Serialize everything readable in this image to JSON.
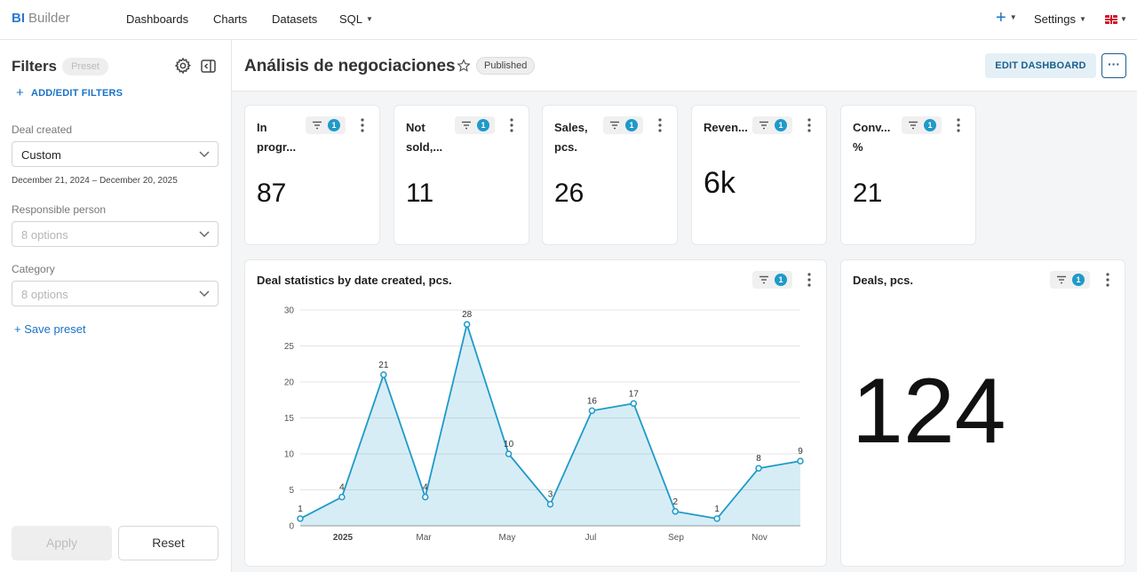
{
  "app": {
    "logo_bold": "BI",
    "logo_rest": "Builder"
  },
  "nav": {
    "items": [
      "Dashboards",
      "Charts",
      "Datasets",
      "SQL"
    ],
    "plus_label": "+",
    "settings_label": "Settings"
  },
  "sidebar": {
    "title": "Filters",
    "preset_badge": "Preset",
    "add_filters": "ADD/EDIT FILTERS",
    "deal_created": {
      "label": "Deal created",
      "value": "Custom",
      "range": "December 21, 2024 – December 20, 2025"
    },
    "responsible": {
      "label": "Responsible person",
      "placeholder": "8 options"
    },
    "category": {
      "label": "Category",
      "placeholder": "8 options"
    },
    "save_preset": "+ Save preset",
    "apply": "Apply",
    "reset": "Reset"
  },
  "dashboard": {
    "title": "Análisis de negociaciones",
    "status": "Published",
    "edit_label": "EDIT DASHBOARD",
    "more_label": "···",
    "filter_count": "1",
    "kpis": [
      {
        "line1": "In",
        "line2": "progr...",
        "value": "87"
      },
      {
        "line1": "Not",
        "line2": "sold,...",
        "value": "11"
      },
      {
        "line1": "Sales,",
        "line2": "pcs.",
        "value": "26"
      },
      {
        "line1": "Reven...",
        "line2": "",
        "value": "6k"
      },
      {
        "line1": "Conv...",
        "line2": "%",
        "value": "21"
      }
    ],
    "deals_card": {
      "title": "Deals, pcs.",
      "value": "124"
    }
  },
  "chart_data": {
    "type": "area",
    "title": "Deal statistics by date created, pcs.",
    "x": [
      "2024-12-22",
      "2025-01-05",
      "2025-01-19",
      "2025-02-02",
      "2025-02-16",
      "2025-03-02",
      "2025-03-16",
      "2025-03-30",
      "2025-04-13",
      "2025-04-27",
      "2025-05-11",
      "2025-05-25",
      "2025-06-08"
    ],
    "values": [
      1,
      4,
      21,
      4,
      28,
      10,
      3,
      16,
      17,
      2,
      1,
      8,
      9
    ],
    "xticks": [
      "2025",
      "Mar",
      "May",
      "Jul",
      "Sep",
      "Nov"
    ],
    "yticks": [
      0,
      5,
      10,
      15,
      20,
      25,
      30
    ],
    "ylim": [
      0,
      30
    ],
    "grid": true,
    "color": "#1f9ac9"
  }
}
